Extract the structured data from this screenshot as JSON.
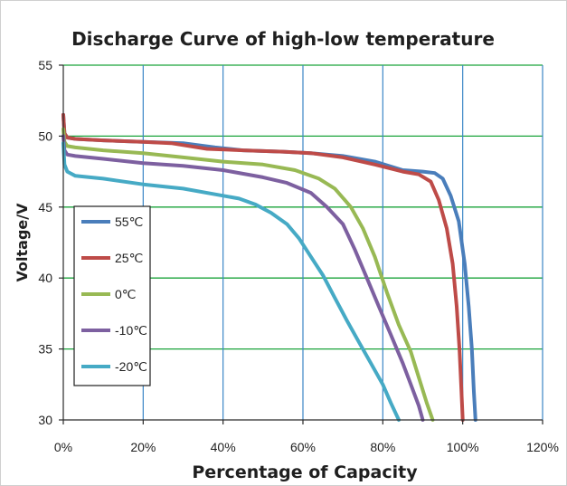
{
  "chart_data": {
    "type": "line",
    "title": "Discharge Curve of high-low temperature",
    "xlabel": "Percentage of Capacity",
    "ylabel": "Voltage/V",
    "xlim": [
      0,
      120
    ],
    "ylim": [
      30,
      55
    ],
    "x_ticks": [
      0,
      20,
      40,
      60,
      80,
      100,
      120
    ],
    "x_tick_labels": [
      "0%",
      "20%",
      "40%",
      "60%",
      "80%",
      "100%",
      "120%"
    ],
    "y_ticks": [
      30,
      35,
      40,
      45,
      50,
      55
    ],
    "y_tick_labels": [
      "30",
      "35",
      "40",
      "45",
      "50",
      "55"
    ],
    "grid": true,
    "legend_position": "left",
    "series": [
      {
        "name": "55℃",
        "color": "#4a7ebb",
        "x": [
          0,
          0.3,
          1,
          3,
          10,
          20,
          30,
          38,
          45,
          55,
          62,
          70,
          78,
          85,
          90,
          93,
          95,
          97,
          99,
          100.5,
          101.5,
          102.3,
          102.8,
          103.2
        ],
        "y": [
          51.5,
          50.2,
          49.9,
          49.8,
          49.7,
          49.6,
          49.5,
          49.2,
          49.0,
          48.9,
          48.8,
          48.6,
          48.2,
          47.6,
          47.5,
          47.4,
          47.0,
          45.8,
          44.0,
          41.0,
          38.0,
          35.0,
          32.0,
          30.0
        ]
      },
      {
        "name": "25℃",
        "color": "#be4b48",
        "x": [
          0,
          0.3,
          1,
          3,
          10,
          20,
          27,
          36,
          45,
          55,
          62,
          70,
          78,
          85,
          89,
          92,
          94,
          96,
          97.5,
          98.5,
          99.2,
          99.7,
          100
        ],
        "y": [
          51.5,
          50.2,
          49.9,
          49.8,
          49.7,
          49.6,
          49.5,
          49.1,
          49.0,
          48.9,
          48.8,
          48.5,
          48.0,
          47.5,
          47.3,
          46.8,
          45.5,
          43.5,
          41.0,
          38.0,
          35.0,
          32.0,
          30.0
        ]
      },
      {
        "name": "0℃",
        "color": "#98b954",
        "x": [
          0,
          0.3,
          1,
          3,
          10,
          20,
          30,
          40,
          50,
          58,
          64,
          68,
          72,
          75,
          78,
          81,
          84,
          87,
          89,
          91,
          92.5
        ],
        "y": [
          50.5,
          49.6,
          49.3,
          49.2,
          49.0,
          48.8,
          48.5,
          48.2,
          48.0,
          47.6,
          47.0,
          46.3,
          45.0,
          43.5,
          41.5,
          39.0,
          36.7,
          34.8,
          33.0,
          31.2,
          30.0
        ]
      },
      {
        "name": "-10℃",
        "color": "#7d60a0",
        "x": [
          0,
          0.3,
          1,
          3,
          10,
          20,
          30,
          40,
          50,
          56,
          62,
          66,
          70,
          73,
          76,
          79,
          82,
          85,
          87,
          89,
          90
        ],
        "y": [
          50.0,
          49.0,
          48.7,
          48.6,
          48.4,
          48.1,
          47.9,
          47.6,
          47.1,
          46.7,
          46.0,
          45.0,
          43.8,
          42.0,
          40.0,
          38.0,
          36.0,
          34.0,
          32.5,
          31.0,
          30.0
        ]
      },
      {
        "name": "-20℃",
        "color": "#46aac5",
        "x": [
          0,
          0.3,
          1,
          3,
          10,
          20,
          30,
          38,
          44,
          48,
          52,
          56,
          59,
          62,
          65,
          68,
          71,
          74,
          77,
          80,
          82,
          84
        ],
        "y": [
          49.5,
          48.0,
          47.5,
          47.2,
          47.0,
          46.6,
          46.3,
          45.9,
          45.6,
          45.2,
          44.6,
          43.8,
          42.8,
          41.5,
          40.2,
          38.6,
          37.0,
          35.5,
          34.0,
          32.5,
          31.2,
          30.0
        ]
      }
    ]
  }
}
